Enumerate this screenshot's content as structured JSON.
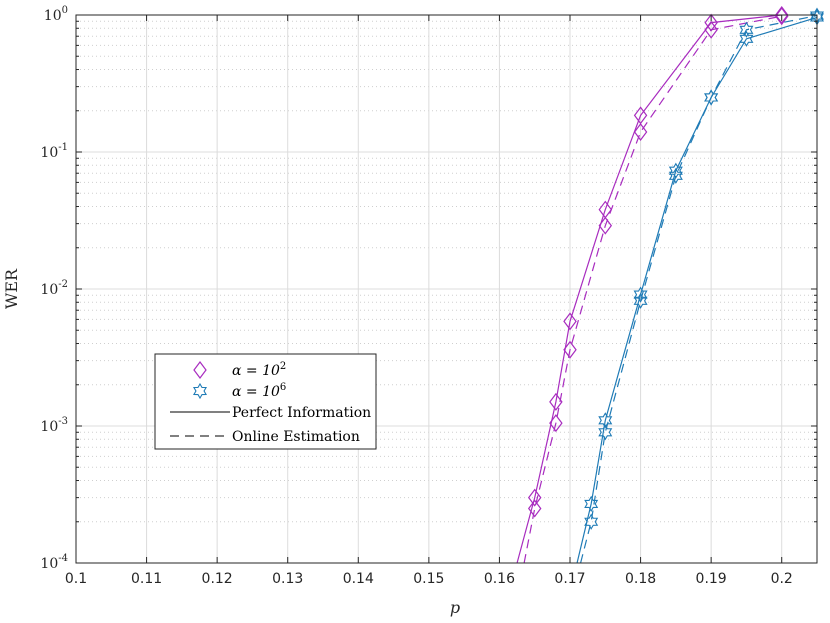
{
  "chart_data": {
    "type": "line",
    "xlabel": "p",
    "ylabel": "WER",
    "xlim": [
      0.1,
      0.205
    ],
    "ylim": [
      0.0001,
      1
    ],
    "yscale": "log",
    "grid": true,
    "x_ticks": [
      "0.1",
      "0.11",
      "0.12",
      "0.13",
      "0.14",
      "0.15",
      "0.16",
      "0.17",
      "0.18",
      "0.19",
      "0.2"
    ],
    "y_ticks": [
      {
        "base": "10",
        "exp": "-4"
      },
      {
        "base": "10",
        "exp": "-3"
      },
      {
        "base": "10",
        "exp": "-2"
      },
      {
        "base": "10",
        "exp": "-1"
      },
      {
        "base": "10",
        "exp": "0"
      }
    ],
    "legend_position": "lower-left",
    "legend": {
      "alpha1": {
        "prefix": "α = 10",
        "exp": "2"
      },
      "alpha2": {
        "prefix": "α = 10",
        "exp": "6"
      },
      "perfect": "Perfect Information",
      "online": "Online Estimation"
    },
    "series": [
      {
        "group": "alpha1",
        "style": "solid",
        "marker": "diamond",
        "color": "#a82cbf",
        "x": [
          0.1625,
          0.165,
          0.168,
          0.17,
          0.175,
          0.18,
          0.19,
          0.2
        ],
        "y": [
          0.0001,
          0.0003,
          0.0015,
          0.0058,
          0.038,
          0.185,
          0.88,
          1.0
        ]
      },
      {
        "group": "alpha1",
        "style": "dashed",
        "marker": "diamond",
        "color": "#a82cbf",
        "x": [
          0.1635,
          0.165,
          0.168,
          0.17,
          0.175,
          0.18,
          0.19,
          0.2
        ],
        "y": [
          0.0001,
          0.00025,
          0.00105,
          0.0036,
          0.029,
          0.14,
          0.78,
          0.98
        ]
      },
      {
        "group": "alpha2",
        "style": "solid",
        "marker": "hexagram",
        "color": "#1f7bb6",
        "x": [
          0.171,
          0.173,
          0.175,
          0.18,
          0.185,
          0.19,
          0.195,
          0.205
        ],
        "y": [
          0.0001,
          0.00027,
          0.0011,
          0.0091,
          0.073,
          0.25,
          0.67,
          0.96
        ]
      },
      {
        "group": "alpha2",
        "style": "dashed",
        "marker": "hexagram",
        "color": "#1f7bb6",
        "x": [
          0.1715,
          0.173,
          0.175,
          0.18,
          0.185,
          0.19,
          0.195,
          0.205
        ],
        "y": [
          0.0001,
          0.0002,
          0.0009,
          0.0082,
          0.067,
          0.25,
          0.78,
          0.99
        ]
      }
    ]
  }
}
